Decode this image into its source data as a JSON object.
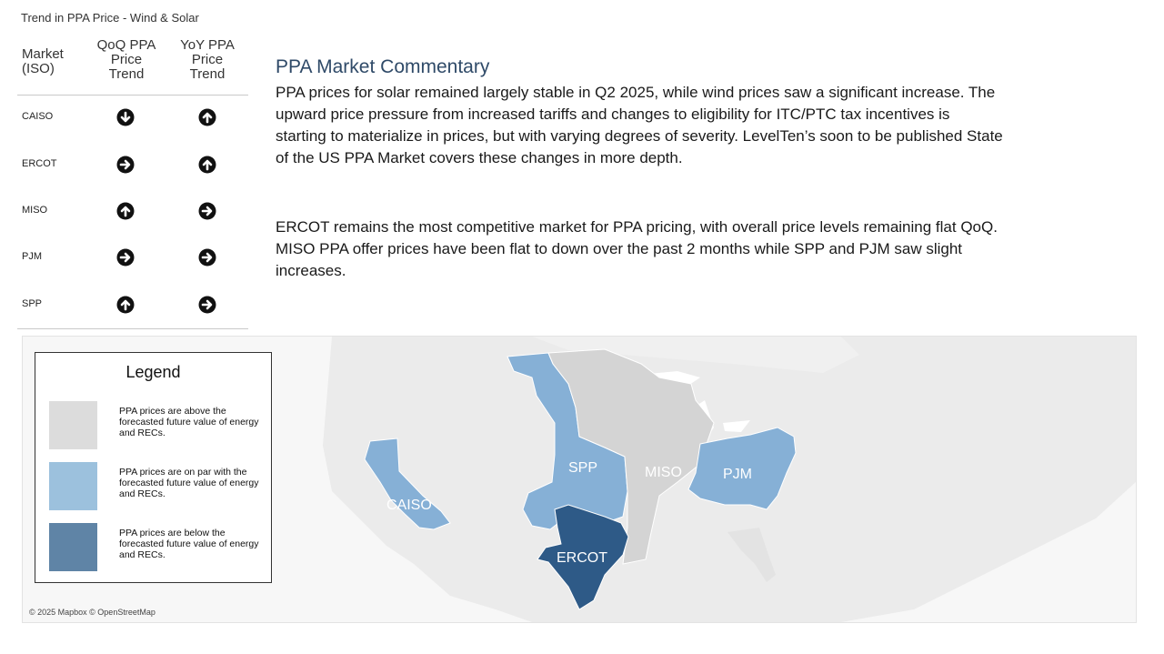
{
  "table": {
    "title": "Trend in PPA Price - Wind & Solar",
    "headers": {
      "market": [
        "Market",
        "(ISO)"
      ],
      "qoq": [
        "QoQ PPA",
        "Price",
        "Trend"
      ],
      "yoy": [
        "YoY PPA",
        "Price",
        "Trend"
      ]
    },
    "rows": [
      {
        "market": "CAISO",
        "qoq": "down",
        "yoy": "up"
      },
      {
        "market": "ERCOT",
        "qoq": "flat",
        "yoy": "up"
      },
      {
        "market": "MISO",
        "qoq": "up",
        "yoy": "flat"
      },
      {
        "market": "PJM",
        "qoq": "flat",
        "yoy": "flat"
      },
      {
        "market": "SPP",
        "qoq": "up",
        "yoy": "flat"
      }
    ]
  },
  "commentary": {
    "title": "PPA Market Commentary",
    "paragraph1": "PPA prices for solar remained largely stable in Q2 2025, while wind prices saw a significant increase. The upward price pressure from increased tariffs and changes to eligibility for ITC/PTC tax incentives is starting to materialize in prices, but with varying degrees of severity. LevelTen’s soon to be published State of the US PPA Market covers these changes in more depth.",
    "paragraph2": "ERCOT remains the most competitive market for PPA pricing, with overall price levels remaining flat QoQ. MISO PPA offer prices have been flat to down over the past 2 months while SPP and PJM saw slight increases."
  },
  "legend": {
    "title": "Legend",
    "items": [
      {
        "label": "PPA prices are above the forecasted future value of energy and RECs.",
        "color": "#dcdcdc"
      },
      {
        "label": "PPA prices are on par with the forecasted future value of energy and RECs.",
        "color": "#9cc1dd"
      },
      {
        "label": "PPA prices are below the forecasted future value of energy and RECs.",
        "color": "#5f84a6"
      }
    ]
  },
  "map": {
    "attribution": "© 2025 Mapbox © OpenStreetMap",
    "regions": [
      {
        "name": "CAISO",
        "color": "#86b0d6"
      },
      {
        "name": "SPP",
        "color": "#86b0d6"
      },
      {
        "name": "MISO",
        "color": "#d4d4d4"
      },
      {
        "name": "PJM",
        "color": "#86b0d6"
      },
      {
        "name": "ERCOT",
        "color": "#2e5a87"
      }
    ]
  },
  "icons": {
    "up": "arrow-up-circle-icon",
    "down": "arrow-down-circle-icon",
    "flat": "arrow-right-circle-icon"
  }
}
